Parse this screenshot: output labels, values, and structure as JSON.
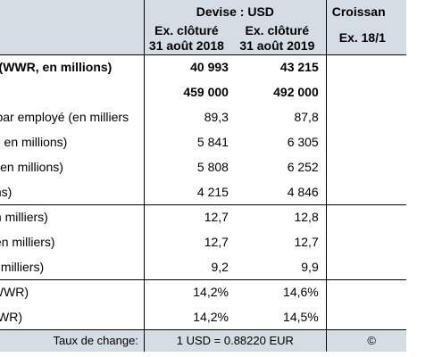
{
  "header": {
    "currency": "Devise : USD",
    "growth": "Croissan",
    "col1_line1": "Ex. clôturé",
    "col1_line2": "31 août 2018",
    "col2_line1": "Ex. clôturé",
    "col2_line2": "31 août 2019",
    "growth_sub": "Ex. 18/1"
  },
  "rows": [
    {
      "label": "ndial (WWR, en millions)",
      "v2018": "40 993",
      "v2019": "43 215"
    },
    {
      "label": "",
      "v2018": "459 000",
      "v2019": "492 000"
    },
    {
      "label": "ndial par employé (en milliers",
      "v2018": "89,3",
      "v2019": "87,8"
    },
    {
      "label": "n (OP, en millions)",
      "v2018": "5 841",
      "v2019": "6 305"
    },
    {
      "label": "(PBT, en millions)",
      "v2018": "5 808",
      "v2019": "6 252"
    },
    {
      "label": "millions)",
      "v2018": "4 215",
      "v2019": "4 846"
    },
    {
      "label": "de (en milliers)",
      "v2018": "12,7",
      "v2019": "12,8"
    },
    {
      "label": "nde (en milliers)",
      "v2018": "12,7",
      "v2019": "12,7"
    },
    {
      "label": "le (en milliers)",
      "v2018": "9,2",
      "v2019": "9,9"
    },
    {
      "label": "(OP/WWR)",
      "v2018": "14,2%",
      "v2019": "14,6%"
    },
    {
      "label": "BT/WWR)",
      "v2018": "14,2%",
      "v2019": "14,5%"
    }
  ],
  "footer": {
    "label": "Taux de change:",
    "value": "1 USD =  0.88220 EUR",
    "mark": "©"
  }
}
